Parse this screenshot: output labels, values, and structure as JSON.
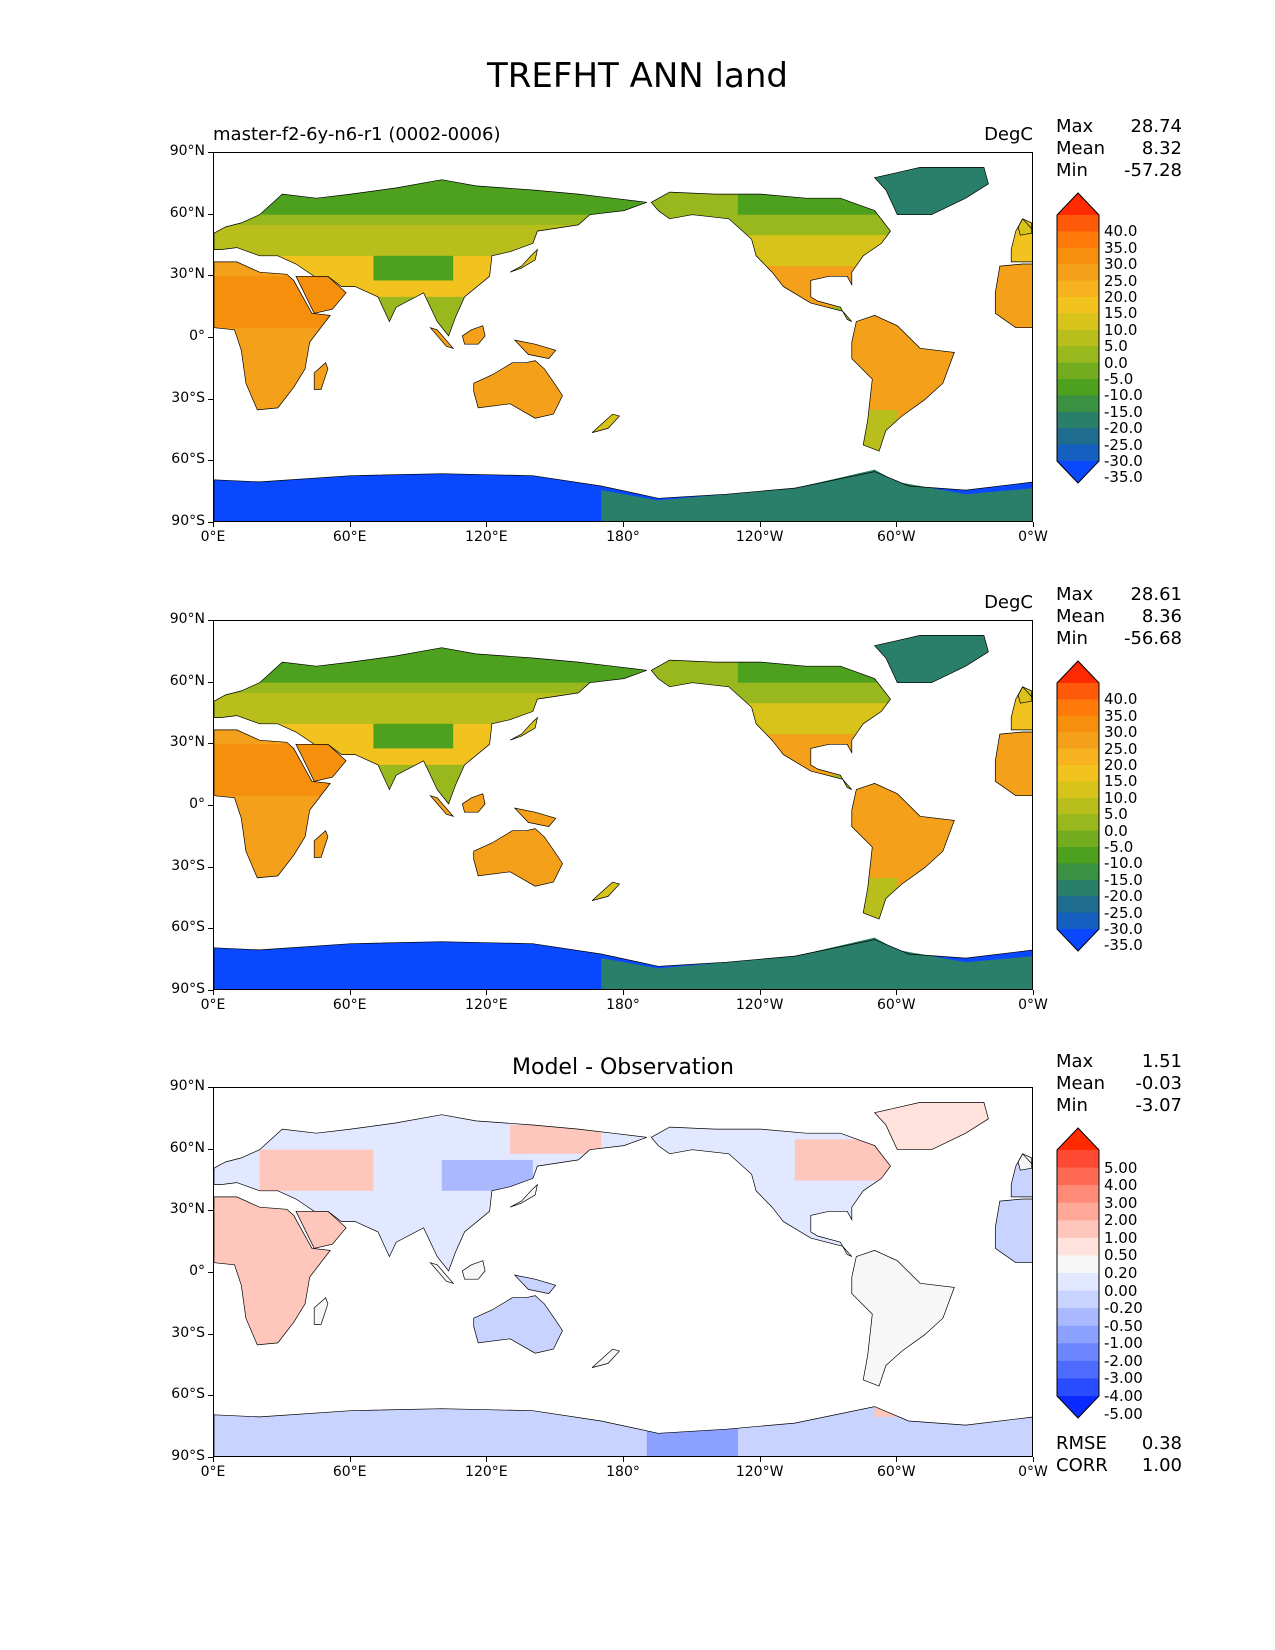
{
  "title": "TREFHT ANN land",
  "panels": [
    {
      "name": "test",
      "left_title": "master-f2-6y-n6-r1 (0002-0006)",
      "center_title": "",
      "units": "DegC",
      "stats": [
        {
          "label": "Max",
          "value": "28.74"
        },
        {
          "label": "Mean",
          "value": "8.32"
        },
        {
          "label": "Min",
          "value": "-57.28"
        }
      ],
      "colorbar": "abs",
      "extra_stats": []
    },
    {
      "name": "reference",
      "left_title": "",
      "center_title": "",
      "units": "DegC",
      "stats": [
        {
          "label": "Max",
          "value": "28.61"
        },
        {
          "label": "Mean",
          "value": "8.36"
        },
        {
          "label": "Min",
          "value": "-56.68"
        }
      ],
      "colorbar": "abs",
      "extra_stats": []
    },
    {
      "name": "difference",
      "left_title": "",
      "center_title": "Model - Observation",
      "units": "",
      "stats": [
        {
          "label": "Max",
          "value": "1.51"
        },
        {
          "label": "Mean",
          "value": "-0.03"
        },
        {
          "label": "Min",
          "value": "-3.07"
        }
      ],
      "colorbar": "diff",
      "extra_stats": [
        {
          "label": "RMSE",
          "value": "0.38"
        },
        {
          "label": "CORR",
          "value": "1.00"
        }
      ]
    }
  ],
  "axes": {
    "lat_ticks": [
      "90°N",
      "60°N",
      "30°N",
      "0°",
      "30°S",
      "60°S",
      "90°S"
    ],
    "lon_ticks": [
      "0°E",
      "60°E",
      "120°E",
      "180°",
      "120°W",
      "60°W",
      "0°W"
    ]
  },
  "colorbars": {
    "abs": {
      "labels": [
        "40.0",
        "35.0",
        "30.0",
        "25.0",
        "20.0",
        "15.0",
        "10.0",
        "5.0",
        "0.0",
        "-5.0",
        "-10.0",
        "-15.0",
        "-20.0",
        "-25.0",
        "-30.0",
        "-35.0"
      ],
      "colors": [
        "#ff2a00",
        "#ff5a0a",
        "#ff7a0a",
        "#f58f0c",
        "#f5a01a",
        "#f7b21f",
        "#f2c21e",
        "#d8c31a",
        "#b8be1c",
        "#98b81e",
        "#73ad1f",
        "#4ea11f",
        "#3a9141",
        "#2a7f6a",
        "#1e6d8f",
        "#155fc0",
        "#0a48ff"
      ]
    },
    "diff": {
      "labels": [
        "5.00",
        "4.00",
        "3.00",
        "2.00",
        "1.00",
        "0.50",
        "0.20",
        "0.00",
        "-0.20",
        "-0.50",
        "-1.00",
        "-2.00",
        "-3.00",
        "-4.00",
        "-5.00"
      ],
      "colors": [
        "#ff2a00",
        "#ff4a33",
        "#ff6a55",
        "#ff8a77",
        "#ffa898",
        "#ffc6bb",
        "#ffe2dc",
        "#f7f7f7",
        "#e2e8ff",
        "#c8d3ff",
        "#aab9ff",
        "#8ba0ff",
        "#6c86ff",
        "#4d6cff",
        "#2a4cff",
        "#0a2aff"
      ]
    }
  },
  "colors": {
    "antarctic_abs": "#0a48ff",
    "antarctic_west": "#2a7f6a",
    "diff_blue": "#c8d3ff",
    "diff_red": "#ffc6bb"
  }
}
